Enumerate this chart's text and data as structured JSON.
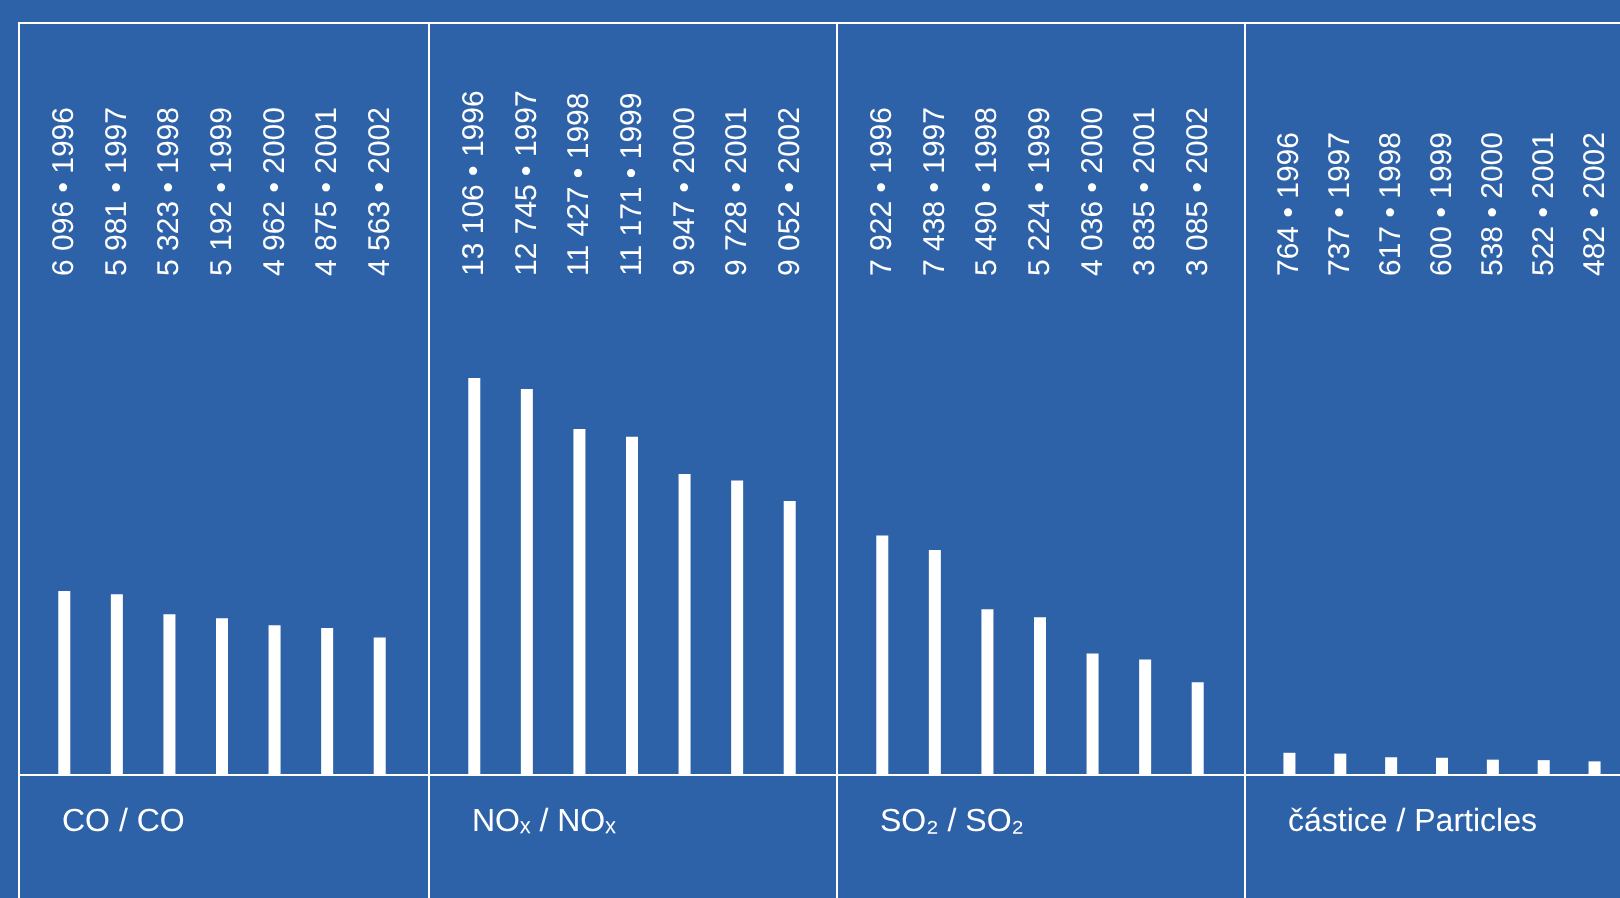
{
  "chart_data": [
    {
      "type": "bar",
      "xlabel": "CO / CO",
      "categories": [
        null,
        null,
        null,
        null,
        null,
        null,
        null
      ],
      "values": [
        6096,
        5981,
        5323,
        5192,
        4962,
        4875,
        4563
      ],
      "value_labels": [
        "6 096 • 1996",
        "5 981 • 1997",
        "5 323 • 1998",
        "5 192 • 1999",
        "4 962 • 2000",
        "4 875 • 2001",
        "4 563 • 2002"
      ],
      "color": "#ffffff"
    },
    {
      "type": "bar",
      "xlabel": "NOₓ / NOₓ",
      "categories": [
        null,
        null,
        null,
        null,
        null,
        null,
        null
      ],
      "values": [
        13106,
        12745,
        11427,
        11171,
        9947,
        9728,
        9052
      ],
      "value_labels": [
        "13 106 • 1996",
        "12 745 • 1997",
        "11 427 • 1998",
        "11 171 • 1999",
        "9 947 • 2000",
        "9 728 • 2001",
        "9 052 • 2002"
      ],
      "color": "#ffffff"
    },
    {
      "type": "bar",
      "xlabel": "SO₂ / SO₂",
      "categories": [
        null,
        null,
        null,
        null,
        null,
        null,
        null
      ],
      "values": [
        7922,
        7438,
        5490,
        5224,
        4036,
        3835,
        3085
      ],
      "value_labels": [
        "7 922 • 1996",
        "7 438 • 1997",
        "5 490 • 1998",
        "5 224 • 1999",
        "4 036 • 2000",
        "3 835 • 2001",
        "3 085 • 2002"
      ],
      "color": "#ffffff"
    },
    {
      "type": "bar",
      "xlabel": "částice / Particles",
      "categories": [
        null,
        null,
        null,
        null,
        null,
        null,
        null
      ],
      "values": [
        764,
        737,
        617,
        600,
        538,
        522,
        482
      ],
      "value_labels": [
        "764 • 1996",
        "737 • 1997",
        "617 • 1998",
        "600 • 1999",
        "538 • 2000",
        "522 • 2001",
        "482 • 2002"
      ],
      "color": "#ffffff"
    }
  ]
}
